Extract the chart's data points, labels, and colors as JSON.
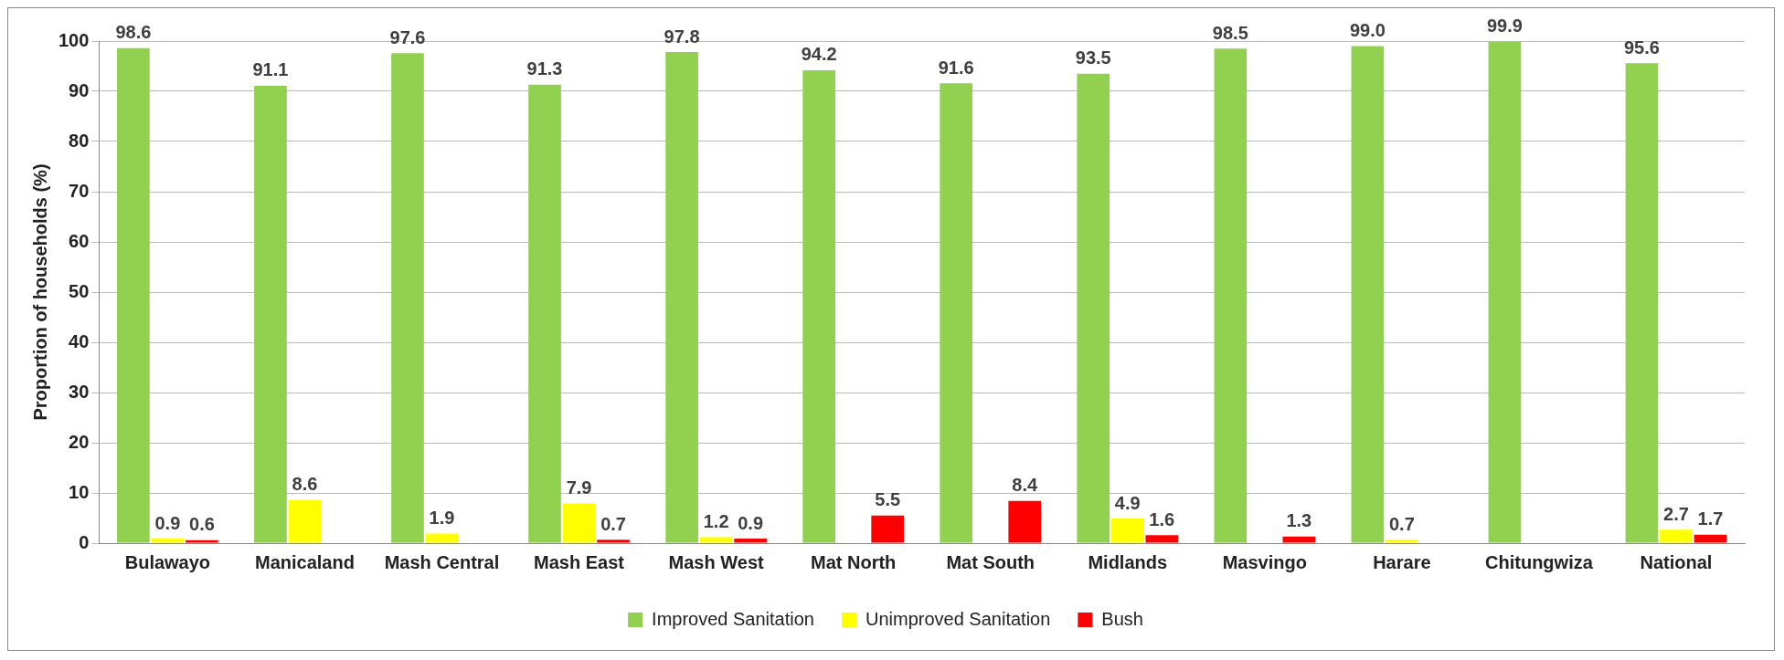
{
  "chart_data": {
    "type": "bar",
    "ylabel": "Proportion of households (%)",
    "categories": [
      "Bulawayo",
      "Manicaland",
      "Mash Central",
      "Mash East",
      "Mash West",
      "Mat North",
      "Mat South",
      "Midlands",
      "Masvingo",
      "Harare",
      "Chitungwiza",
      "National"
    ],
    "series": [
      {
        "name": "Improved Sanitation",
        "color": "#92d050",
        "values": [
          98.6,
          91.1,
          97.6,
          91.3,
          97.8,
          94.2,
          91.6,
          93.5,
          98.5,
          99.0,
          99.9,
          95.6
        ],
        "value_labels": [
          "98.6",
          "91.1",
          "97.6",
          "91.3",
          "97.8",
          "94.2",
          "91.6",
          "93.5",
          "98.5",
          "99.0",
          "99.9",
          "95.6"
        ]
      },
      {
        "name": "Unimproved Sanitation",
        "color": "#ffff00",
        "values": [
          0.9,
          8.6,
          1.9,
          7.9,
          1.2,
          null,
          null,
          4.9,
          null,
          0.7,
          null,
          2.7
        ],
        "value_labels": [
          "0.9",
          "8.6",
          "1.9",
          "7.9",
          "1.2",
          null,
          null,
          "4.9",
          null,
          "0.7",
          null,
          "2.7"
        ]
      },
      {
        "name": "Bush",
        "color": "#ff0000",
        "values": [
          0.6,
          null,
          null,
          0.7,
          0.9,
          5.5,
          8.4,
          1.6,
          1.3,
          null,
          null,
          1.7
        ],
        "value_labels": [
          "0.6",
          null,
          null,
          "0.7",
          "0.9",
          "5.5",
          "8.4",
          "1.6",
          "1.3",
          null,
          null,
          "1.7"
        ]
      }
    ],
    "ylim": [
      0,
      100
    ],
    "yticks": [
      0,
      10,
      20,
      30,
      40,
      50,
      60,
      70,
      80,
      90,
      100
    ],
    "grid": "y",
    "legend": "bottom"
  }
}
